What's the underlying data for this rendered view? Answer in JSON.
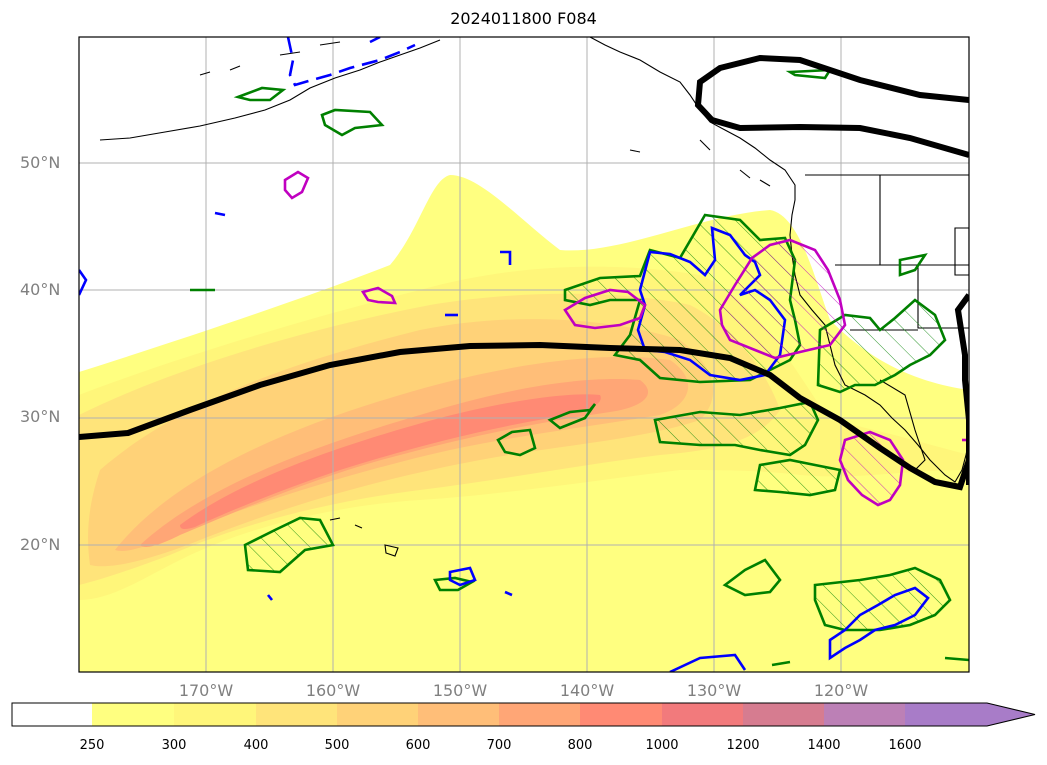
{
  "title": "2024011800 F084",
  "map": {
    "lat_labels": [
      "50°N",
      "40°N",
      "30°N",
      "20°N"
    ],
    "lon_labels": [
      "170°W",
      "160°W",
      "150°W",
      "140°W",
      "130°W",
      "120°W"
    ],
    "lon_range": [
      -180,
      -110
    ],
    "lat_range": [
      10,
      60
    ],
    "shading_legend": {
      "levels": [
        "250",
        "300",
        "400",
        "500",
        "600",
        "700",
        "800",
        "1000",
        "1200",
        "1400",
        "1600"
      ],
      "colors": [
        "#ffff80",
        "#fff67a",
        "#ffe47a",
        "#ffd278",
        "#ffbe78",
        "#ffa676",
        "#ff8a74",
        "#f27a7c",
        "#d67c90",
        "#bc80b6",
        "#a87cc8"
      ],
      "extend": "max"
    },
    "contour_colors": {
      "thick_line": "#000000",
      "green_hatched": "#008000",
      "blue": "#0000ff",
      "magenta": "#c000c0"
    }
  }
}
